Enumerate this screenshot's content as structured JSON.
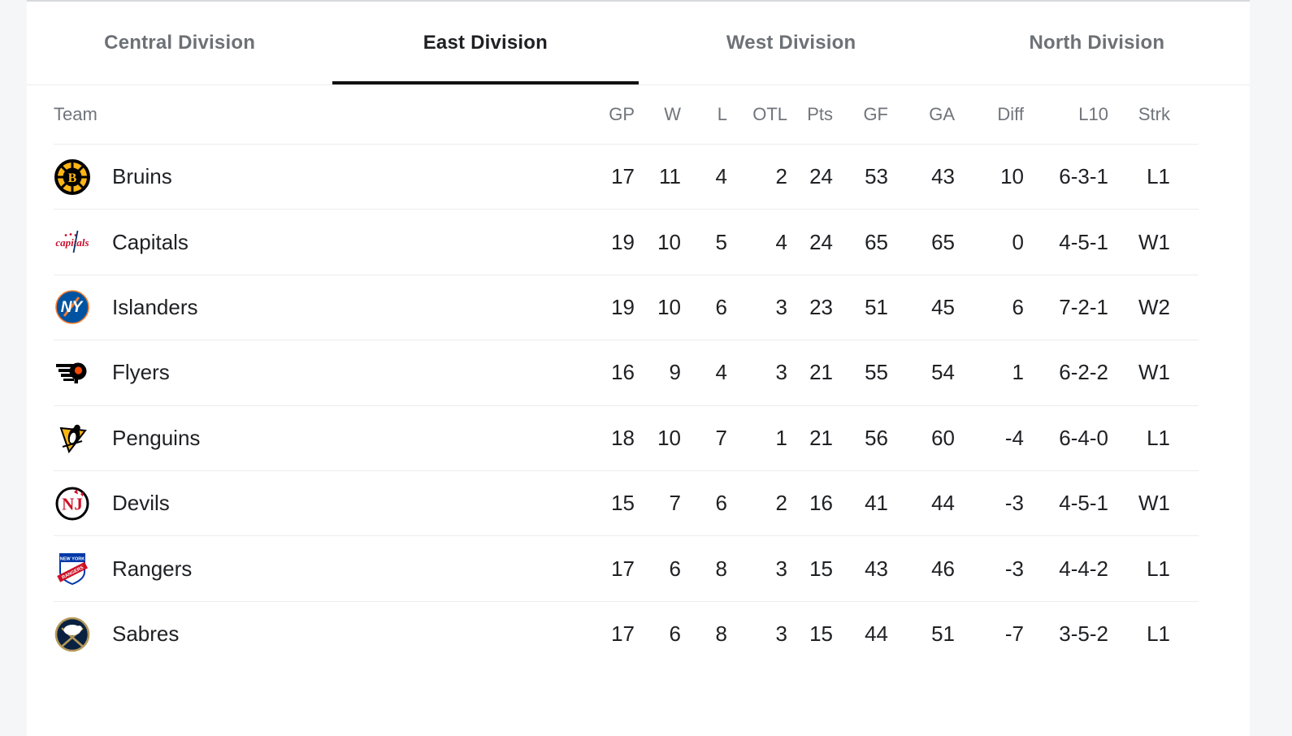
{
  "tabs": [
    {
      "label": "Central Division",
      "active": false
    },
    {
      "label": "East Division",
      "active": true
    },
    {
      "label": "West Division",
      "active": false
    },
    {
      "label": "North Division",
      "active": false
    }
  ],
  "table": {
    "columns": [
      "Team",
      "GP",
      "W",
      "L",
      "OTL",
      "Pts",
      "GF",
      "GA",
      "Diff",
      "L10",
      "Strk"
    ],
    "rows": [
      {
        "team": "Bruins",
        "logo": "bruins-logo",
        "logo_colors": {
          "primary": "#FCB514",
          "secondary": "#010101",
          "accent": "#FCB514"
        },
        "gp": "17",
        "w": "11",
        "l": "4",
        "otl": "2",
        "pts": "24",
        "gf": "53",
        "ga": "43",
        "diff": "10",
        "l10": "6-3-1",
        "strk": "L1"
      },
      {
        "team": "Capitals",
        "logo": "capitals-logo",
        "logo_colors": {
          "primary": "#C8102E",
          "secondary": "#0A3161",
          "accent": "#C8102E"
        },
        "gp": "19",
        "w": "10",
        "l": "5",
        "otl": "4",
        "pts": "24",
        "gf": "65",
        "ga": "65",
        "diff": "0",
        "l10": "4-5-1",
        "strk": "W1"
      },
      {
        "team": "Islanders",
        "logo": "islanders-logo",
        "logo_colors": {
          "primary": "#0053A0",
          "secondary": "#F57D31",
          "accent": "#ffffff"
        },
        "gp": "19",
        "w": "10",
        "l": "6",
        "otl": "3",
        "pts": "23",
        "gf": "51",
        "ga": "45",
        "diff": "6",
        "l10": "7-2-1",
        "strk": "W2"
      },
      {
        "team": "Flyers",
        "logo": "flyers-logo",
        "logo_colors": {
          "primary": "#010101",
          "secondary": "#F74902",
          "accent": "#ffffff"
        },
        "gp": "16",
        "w": "9",
        "l": "4",
        "otl": "3",
        "pts": "21",
        "gf": "55",
        "ga": "54",
        "diff": "1",
        "l10": "6-2-2",
        "strk": "W1"
      },
      {
        "team": "Penguins",
        "logo": "penguins-logo",
        "logo_colors": {
          "primary": "#FCB514",
          "secondary": "#010101",
          "accent": "#ffffff"
        },
        "gp": "18",
        "w": "10",
        "l": "7",
        "otl": "1",
        "pts": "21",
        "gf": "56",
        "ga": "60",
        "diff": "-4",
        "l10": "6-4-0",
        "strk": "L1"
      },
      {
        "team": "Devils",
        "logo": "devils-logo",
        "logo_colors": {
          "primary": "#CE1126",
          "secondary": "#010101",
          "accent": "#ffffff"
        },
        "gp": "15",
        "w": "7",
        "l": "6",
        "otl": "2",
        "pts": "16",
        "gf": "41",
        "ga": "44",
        "diff": "-3",
        "l10": "4-5-1",
        "strk": "W1"
      },
      {
        "team": "Rangers",
        "logo": "rangers-logo",
        "logo_colors": {
          "primary": "#0038A8",
          "secondary": "#CE1126",
          "accent": "#ffffff"
        },
        "gp": "17",
        "w": "6",
        "l": "8",
        "otl": "3",
        "pts": "15",
        "gf": "43",
        "ga": "46",
        "diff": "-3",
        "l10": "4-4-2",
        "strk": "L1"
      },
      {
        "team": "Sabres",
        "logo": "sabres-logo",
        "logo_colors": {
          "primary": "#0A2240",
          "secondary": "#B5985A",
          "accent": "#ffffff"
        },
        "gp": "17",
        "w": "6",
        "l": "8",
        "otl": "3",
        "pts": "15",
        "gf": "44",
        "ga": "51",
        "diff": "-7",
        "l10": "3-5-2",
        "strk": "L1"
      }
    ]
  },
  "colors": {
    "page_background": "#f5f6f8",
    "card_background": "#ffffff",
    "card_top_border": "#d8d9dd",
    "active_tab_text": "#1f2023",
    "inactive_tab_text": "#6d7176",
    "tab_underline": "#111111",
    "header_text": "#70757b",
    "body_text": "#202124",
    "divider": "#ececee"
  }
}
